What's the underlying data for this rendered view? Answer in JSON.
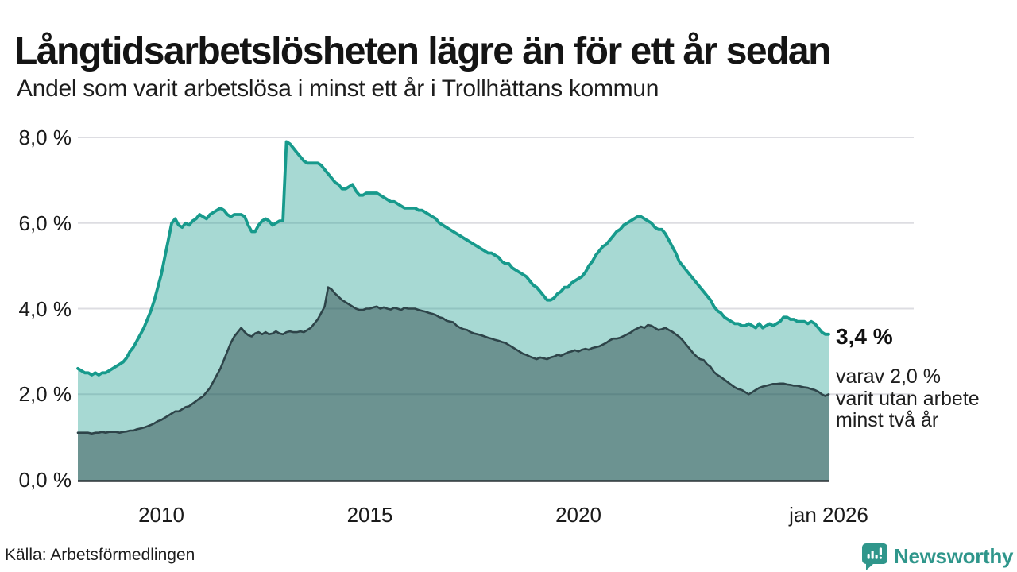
{
  "header": {
    "title": "Långtidsarbetslösheten lägre än för ett år sedan",
    "subtitle": "Andel som varit arbetslösa i minst ett år i Trollhättans kommun"
  },
  "chart_data": {
    "type": "area",
    "title": "Långtidsarbetslösheten lägre än för ett år sedan",
    "subtitle": "Andel som varit arbetslösa i minst ett år i Trollhättans kommun",
    "unit": "%",
    "x_start_year": 2008,
    "x_end_label": "jan 2026",
    "x_step_months": 1,
    "ylim": [
      0,
      8
    ],
    "grid": true,
    "legend": "none",
    "yticks": [
      {
        "v": 0,
        "label": "0,0 %"
      },
      {
        "v": 2,
        "label": "2,0 %"
      },
      {
        "v": 4,
        "label": "4,0 %"
      },
      {
        "v": 6,
        "label": "6,0 %"
      },
      {
        "v": 8,
        "label": "8,0 %"
      }
    ],
    "xticks": [
      {
        "t": 2010,
        "label": "2010"
      },
      {
        "t": 2015,
        "label": "2015"
      },
      {
        "t": 2020,
        "label": "2020"
      },
      {
        "t": 2026,
        "label": "jan 2026"
      }
    ],
    "series": [
      {
        "name": "Andel arbetslösa minst ett år",
        "color": "#179a8c",
        "fill": "rgba(23,154,140,0.38)",
        "line_width": 3.8,
        "end_value_label": "3,4 %",
        "values": [
          2.6,
          2.55,
          2.5,
          2.5,
          2.45,
          2.5,
          2.45,
          2.5,
          2.5,
          2.55,
          2.6,
          2.65,
          2.7,
          2.75,
          2.85,
          3.0,
          3.1,
          3.25,
          3.4,
          3.55,
          3.75,
          3.95,
          4.2,
          4.5,
          4.8,
          5.2,
          5.6,
          6.0,
          6.1,
          5.95,
          5.9,
          6.0,
          5.95,
          6.05,
          6.1,
          6.2,
          6.15,
          6.1,
          6.2,
          6.25,
          6.3,
          6.35,
          6.3,
          6.2,
          6.15,
          6.2,
          6.2,
          6.2,
          6.15,
          5.95,
          5.8,
          5.8,
          5.95,
          6.05,
          6.1,
          6.05,
          5.95,
          6.0,
          6.05,
          6.05,
          7.9,
          7.85,
          7.75,
          7.65,
          7.55,
          7.45,
          7.4,
          7.4,
          7.4,
          7.4,
          7.35,
          7.25,
          7.15,
          7.05,
          6.95,
          6.9,
          6.8,
          6.8,
          6.85,
          6.9,
          6.75,
          6.65,
          6.65,
          6.7,
          6.7,
          6.7,
          6.7,
          6.65,
          6.6,
          6.55,
          6.5,
          6.5,
          6.45,
          6.4,
          6.35,
          6.35,
          6.35,
          6.35,
          6.3,
          6.3,
          6.25,
          6.2,
          6.15,
          6.1,
          6.0,
          5.95,
          5.9,
          5.85,
          5.8,
          5.75,
          5.7,
          5.65,
          5.6,
          5.55,
          5.5,
          5.45,
          5.4,
          5.35,
          5.3,
          5.3,
          5.25,
          5.2,
          5.1,
          5.05,
          5.05,
          4.95,
          4.9,
          4.85,
          4.8,
          4.75,
          4.65,
          4.55,
          4.5,
          4.4,
          4.3,
          4.2,
          4.2,
          4.25,
          4.35,
          4.4,
          4.5,
          4.5,
          4.6,
          4.65,
          4.7,
          4.75,
          4.85,
          5.0,
          5.1,
          5.25,
          5.35,
          5.45,
          5.5,
          5.6,
          5.7,
          5.8,
          5.85,
          5.95,
          6.0,
          6.05,
          6.1,
          6.15,
          6.15,
          6.1,
          6.05,
          6.0,
          5.9,
          5.85,
          5.85,
          5.75,
          5.6,
          5.45,
          5.3,
          5.1,
          5.0,
          4.9,
          4.8,
          4.7,
          4.6,
          4.5,
          4.4,
          4.3,
          4.2,
          4.05,
          3.95,
          3.9,
          3.8,
          3.75,
          3.7,
          3.65,
          3.65,
          3.6,
          3.6,
          3.65,
          3.6,
          3.55,
          3.65,
          3.55,
          3.6,
          3.65,
          3.6,
          3.65,
          3.7,
          3.8,
          3.8,
          3.75,
          3.75,
          3.7,
          3.7,
          3.7,
          3.65,
          3.7,
          3.65,
          3.55,
          3.45,
          3.4,
          3.4
        ]
      },
      {
        "name": "varav arbetslösa minst två år",
        "color": "#2e4449",
        "fill": "rgba(31,56,58,0.43)",
        "line_width": 2.6,
        "end_value_label": "2,0 %",
        "values": [
          1.1,
          1.1,
          1.1,
          1.1,
          1.08,
          1.1,
          1.1,
          1.12,
          1.1,
          1.12,
          1.12,
          1.12,
          1.1,
          1.12,
          1.13,
          1.15,
          1.15,
          1.18,
          1.2,
          1.22,
          1.25,
          1.28,
          1.32,
          1.37,
          1.4,
          1.45,
          1.5,
          1.55,
          1.6,
          1.6,
          1.65,
          1.7,
          1.72,
          1.78,
          1.84,
          1.9,
          1.95,
          2.05,
          2.15,
          2.3,
          2.45,
          2.6,
          2.8,
          3.0,
          3.2,
          3.35,
          3.45,
          3.55,
          3.45,
          3.38,
          3.35,
          3.42,
          3.45,
          3.4,
          3.45,
          3.4,
          3.42,
          3.47,
          3.42,
          3.4,
          3.45,
          3.47,
          3.45,
          3.45,
          3.47,
          3.45,
          3.5,
          3.55,
          3.65,
          3.75,
          3.9,
          4.05,
          4.5,
          4.45,
          4.35,
          4.28,
          4.2,
          4.15,
          4.1,
          4.05,
          4.0,
          3.97,
          3.97,
          4.0,
          4.0,
          4.03,
          4.05,
          4.0,
          4.03,
          4.0,
          3.98,
          4.02,
          4.0,
          3.97,
          4.02,
          4.0,
          4.0,
          4.0,
          3.97,
          3.95,
          3.93,
          3.9,
          3.88,
          3.85,
          3.8,
          3.78,
          3.72,
          3.7,
          3.68,
          3.6,
          3.55,
          3.52,
          3.5,
          3.45,
          3.42,
          3.4,
          3.38,
          3.35,
          3.32,
          3.3,
          3.27,
          3.25,
          3.22,
          3.2,
          3.15,
          3.1,
          3.05,
          3.0,
          2.95,
          2.92,
          2.88,
          2.85,
          2.82,
          2.86,
          2.84,
          2.82,
          2.86,
          2.88,
          2.92,
          2.9,
          2.94,
          2.98,
          3.0,
          3.03,
          3.0,
          3.04,
          3.06,
          3.04,
          3.08,
          3.1,
          3.12,
          3.16,
          3.2,
          3.26,
          3.3,
          3.3,
          3.32,
          3.36,
          3.4,
          3.44,
          3.5,
          3.54,
          3.58,
          3.55,
          3.62,
          3.6,
          3.55,
          3.5,
          3.52,
          3.55,
          3.5,
          3.46,
          3.4,
          3.34,
          3.26,
          3.16,
          3.06,
          2.96,
          2.88,
          2.82,
          2.8,
          2.7,
          2.64,
          2.52,
          2.45,
          2.4,
          2.34,
          2.28,
          2.22,
          2.16,
          2.12,
          2.1,
          2.05,
          2.0,
          2.05,
          2.1,
          2.15,
          2.18,
          2.2,
          2.22,
          2.24,
          2.24,
          2.25,
          2.25,
          2.23,
          2.22,
          2.2,
          2.2,
          2.18,
          2.16,
          2.15,
          2.12,
          2.1,
          2.06,
          2.0,
          1.96,
          2.0
        ]
      }
    ]
  },
  "annotation": {
    "value_label": "3,4 %",
    "sub1": "varav 2,0 %",
    "sub2": "varit utan arbete",
    "sub3": "minst två år"
  },
  "footer": {
    "source": "Källa: Arbetsförmedlingen",
    "brand": "Newsworthy"
  },
  "colors": {
    "accent_teal": "#179a8c",
    "line_dark": "#2e4449",
    "gridline": "#dddde2",
    "axis_line": "#2b3237",
    "text_primary": "#141414",
    "brand_teal": "#2f968b"
  }
}
